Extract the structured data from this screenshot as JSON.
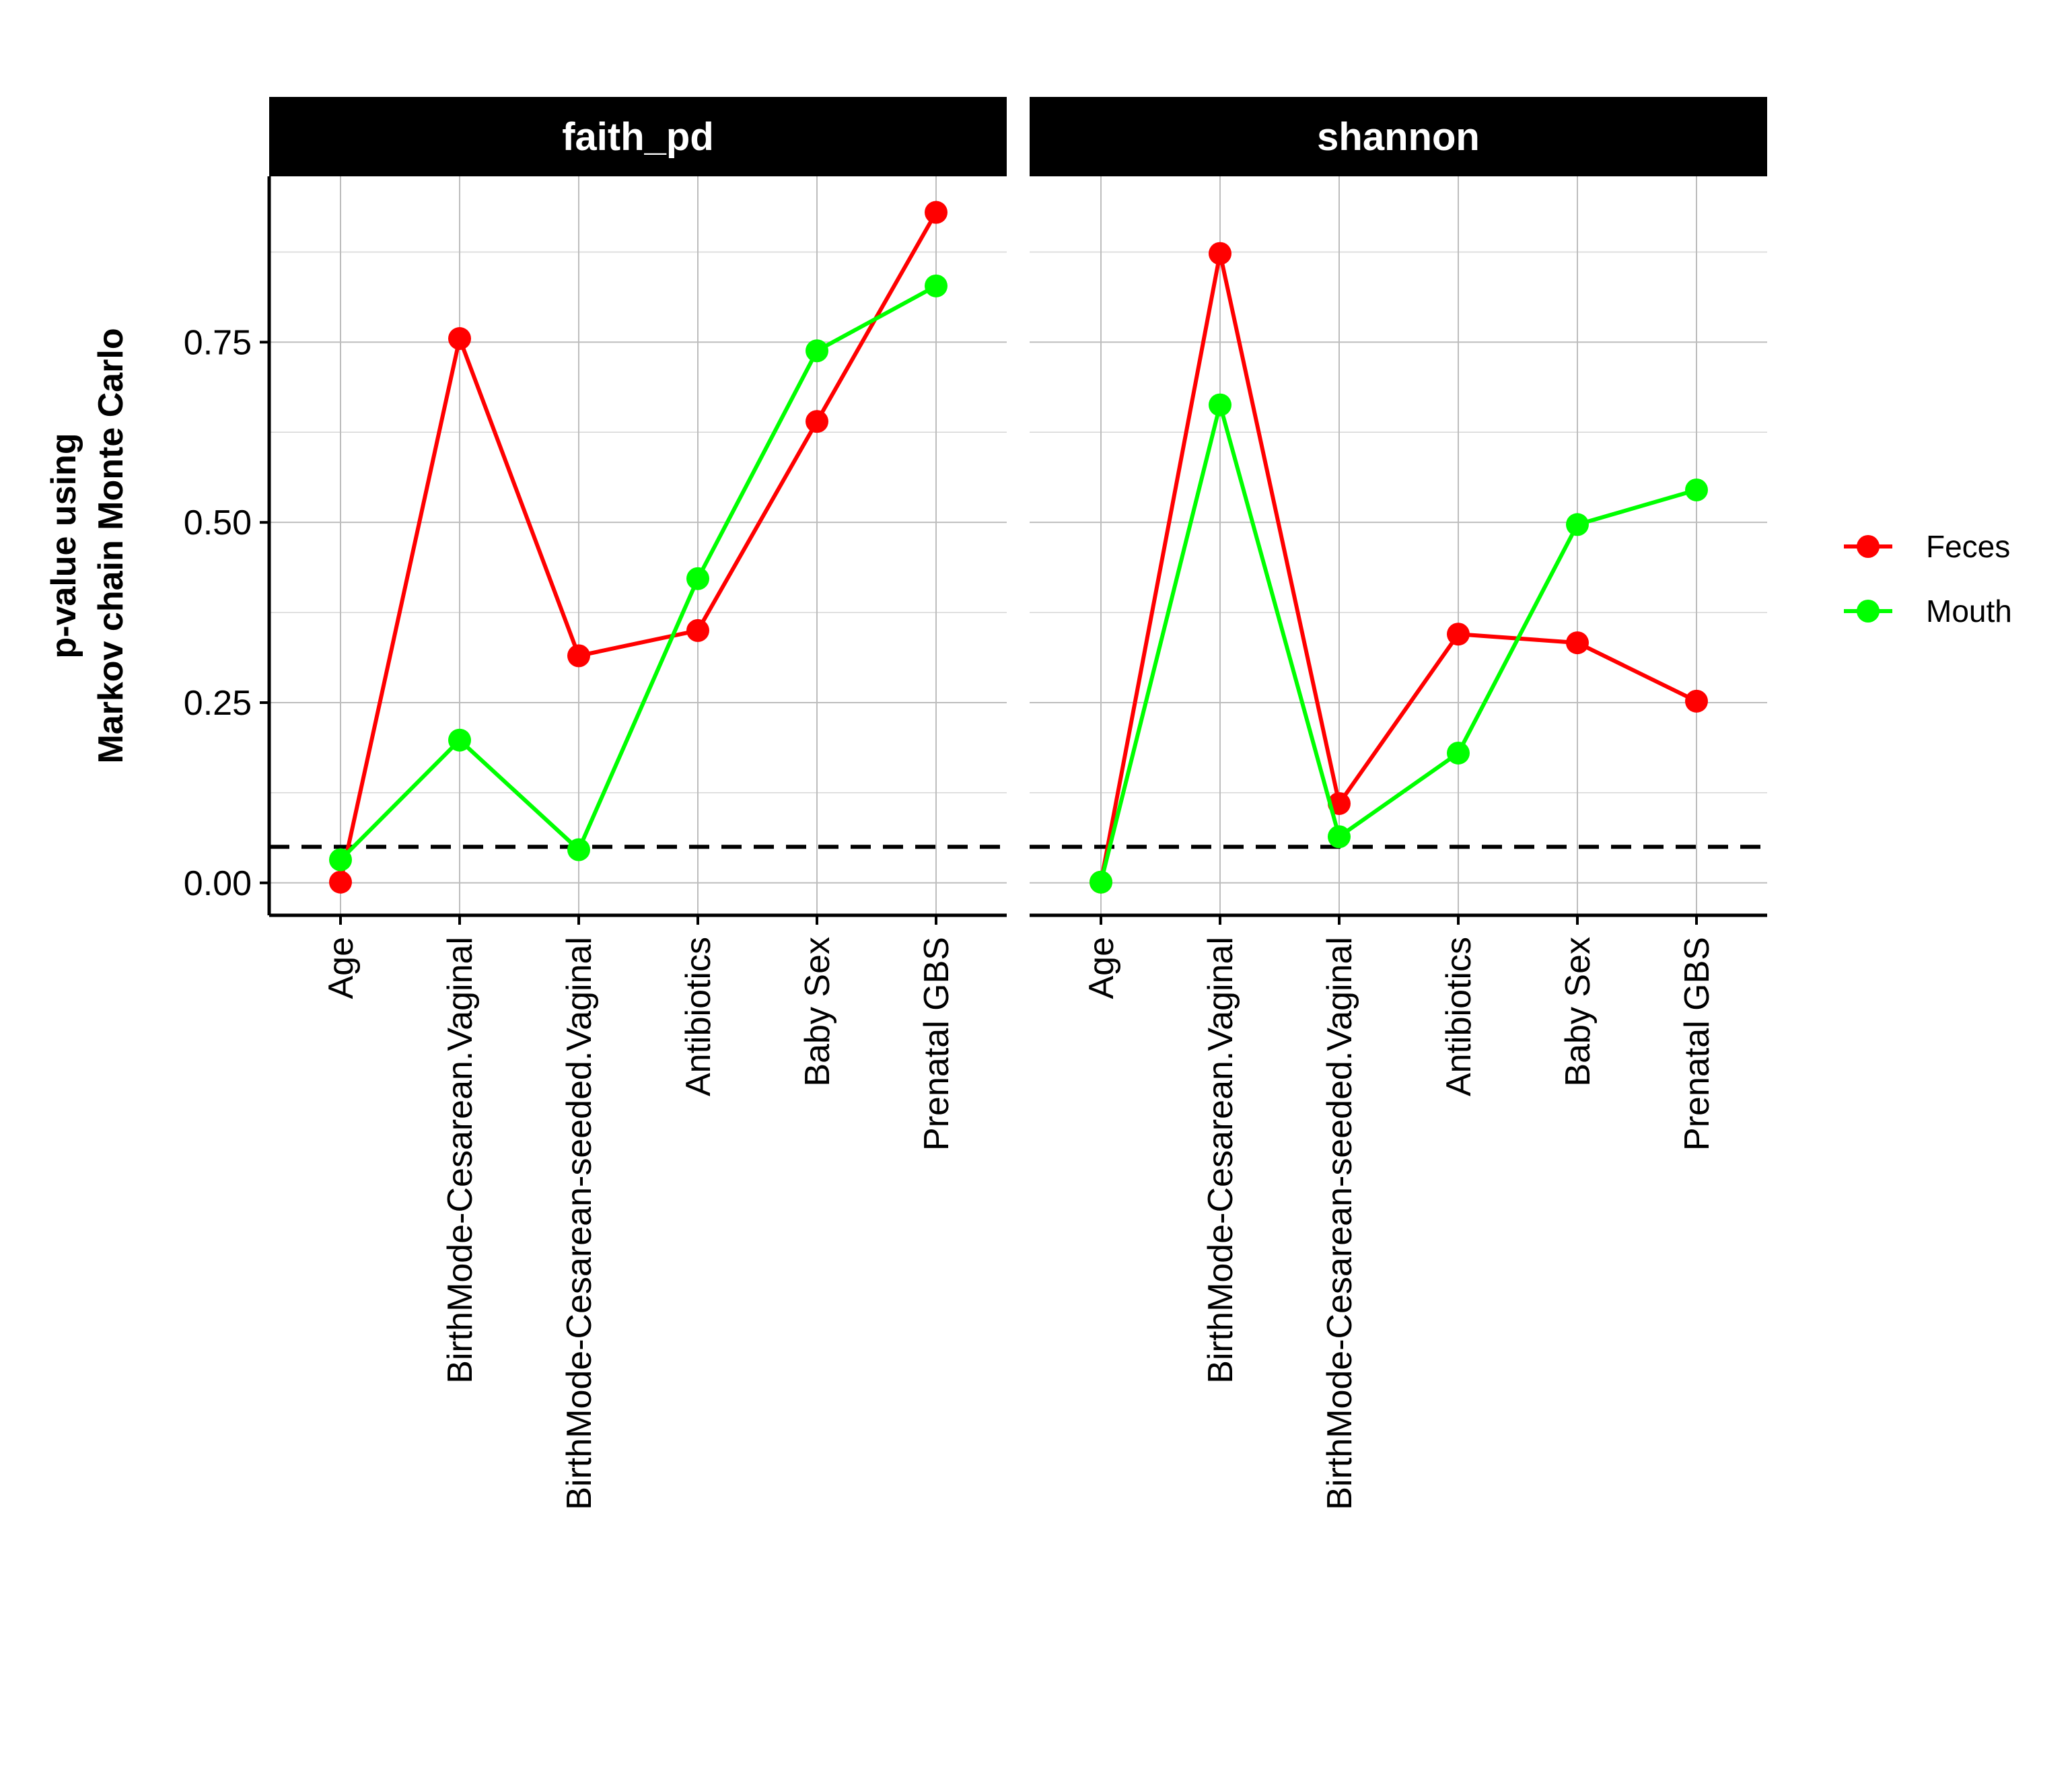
{
  "chart_data": {
    "type": "line",
    "categories": [
      "Age",
      "BirthMode-Cesarean.Vaginal",
      "BirthMode-Cesarean-seeded.Vaginal",
      "Antibiotics",
      "Baby Sex",
      "Prenatal GBS"
    ],
    "ylabel_lines": [
      "p-value using",
      "Markov chain Monte Carlo"
    ],
    "xlabel": "",
    "ylim": [
      -0.045,
      0.98
    ],
    "yticks": [
      0.0,
      0.25,
      0.5,
      0.75
    ],
    "ytick_labels": [
      "0.00",
      "0.25",
      "0.50",
      "0.75"
    ],
    "reference_line": {
      "y": 0.05,
      "style": "dashed",
      "color": "#000000"
    },
    "grid": true,
    "legend_position": "right",
    "legend": [
      {
        "name": "Feces",
        "color": "#ff0000"
      },
      {
        "name": "Mouth",
        "color": "#00ff00"
      }
    ],
    "panels": [
      {
        "title": "faith_pd",
        "series": [
          {
            "name": "Feces",
            "color": "#ff0000",
            "values": [
              0.001,
              0.755,
              0.315,
              0.35,
              0.64,
              0.93
            ]
          },
          {
            "name": "Mouth",
            "color": "#00ff00",
            "values": [
              0.032,
              0.198,
              0.046,
              0.422,
              0.738,
              0.828
            ]
          }
        ]
      },
      {
        "title": "shannon",
        "series": [
          {
            "name": "Feces",
            "color": "#ff0000",
            "values": [
              0.001,
              0.873,
              0.11,
              0.345,
              0.333,
              0.252
            ]
          },
          {
            "name": "Mouth",
            "color": "#00ff00",
            "values": [
              0.001,
              0.663,
              0.064,
              0.18,
              0.497,
              0.545
            ]
          }
        ]
      }
    ]
  }
}
